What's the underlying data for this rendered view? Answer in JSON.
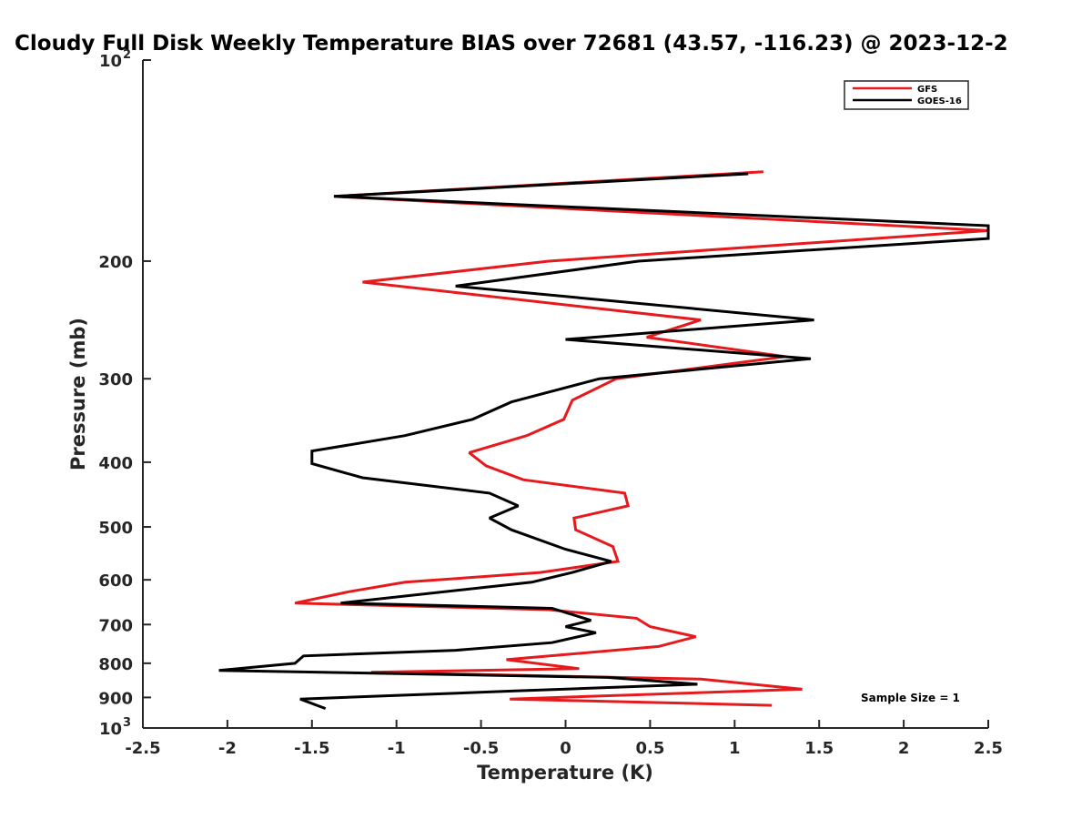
{
  "chart_data": {
    "type": "line",
    "title": "Cloudy Full Disk Weekly Temperature BIAS over 72681 (43.57, -116.23) @ 2023-12-2",
    "xlabel": "Temperature (K)",
    "ylabel": "Pressure (mb)",
    "xlim": [
      -2.5,
      2.5
    ],
    "ylim": [
      1000,
      100
    ],
    "y_scale": "log",
    "y_direction": "reverse",
    "grid": false,
    "legend_position": "top-right",
    "x_ticks": [
      {
        "value": -2.5,
        "label": "-2.5"
      },
      {
        "value": -2,
        "label": "-2"
      },
      {
        "value": -1.5,
        "label": "-1.5"
      },
      {
        "value": -1,
        "label": "-1"
      },
      {
        "value": -0.5,
        "label": "-0.5"
      },
      {
        "value": 0,
        "label": "0"
      },
      {
        "value": 0.5,
        "label": "0.5"
      },
      {
        "value": 1,
        "label": "1"
      },
      {
        "value": 1.5,
        "label": "1.5"
      },
      {
        "value": 2,
        "label": "2"
      },
      {
        "value": 2.5,
        "label": "2.5"
      }
    ],
    "y_ticks": [
      {
        "value": 100,
        "base": "10",
        "exp": "2"
      },
      {
        "value": 200,
        "base": "200",
        "exp": ""
      },
      {
        "value": 300,
        "base": "300",
        "exp": ""
      },
      {
        "value": 400,
        "base": "400",
        "exp": ""
      },
      {
        "value": 500,
        "base": "500",
        "exp": ""
      },
      {
        "value": 600,
        "base": "600",
        "exp": ""
      },
      {
        "value": 700,
        "base": "700",
        "exp": ""
      },
      {
        "value": 800,
        "base": "800",
        "exp": ""
      },
      {
        "value": 900,
        "base": "900",
        "exp": ""
      },
      {
        "value": 1000,
        "base": "10",
        "exp": "3"
      }
    ],
    "series": [
      {
        "name": "GFS",
        "color": "#e6191c",
        "points": [
          {
            "x": 1.17,
            "p": 147
          },
          {
            "x": -1.37,
            "p": 160
          },
          {
            "x": 2.5,
            "p": 180
          },
          {
            "x": -0.1,
            "p": 200
          },
          {
            "x": -1.2,
            "p": 215
          },
          {
            "x": 0.8,
            "p": 245
          },
          {
            "x": 0.48,
            "p": 260
          },
          {
            "x": 1.3,
            "p": 278
          },
          {
            "x": 0.3,
            "p": 300
          },
          {
            "x": 0.04,
            "p": 323
          },
          {
            "x": -0.01,
            "p": 345
          },
          {
            "x": -0.23,
            "p": 365
          },
          {
            "x": -0.57,
            "p": 387
          },
          {
            "x": -0.47,
            "p": 405
          },
          {
            "x": -0.25,
            "p": 425
          },
          {
            "x": 0.35,
            "p": 445
          },
          {
            "x": 0.37,
            "p": 465
          },
          {
            "x": 0.05,
            "p": 485
          },
          {
            "x": 0.06,
            "p": 505
          },
          {
            "x": 0.28,
            "p": 535
          },
          {
            "x": 0.31,
            "p": 563
          },
          {
            "x": -0.15,
            "p": 585
          },
          {
            "x": -0.95,
            "p": 605
          },
          {
            "x": -1.28,
            "p": 625
          },
          {
            "x": -1.6,
            "p": 650
          },
          {
            "x": -0.1,
            "p": 665
          },
          {
            "x": 0.42,
            "p": 685
          },
          {
            "x": 0.5,
            "p": 705
          },
          {
            "x": 0.77,
            "p": 730
          },
          {
            "x": 0.55,
            "p": 755
          },
          {
            "x": -0.35,
            "p": 790
          },
          {
            "x": 0.08,
            "p": 815
          },
          {
            "x": -1.15,
            "p": 825
          },
          {
            "x": 0.8,
            "p": 845
          },
          {
            "x": 1.4,
            "p": 875
          },
          {
            "x": -0.33,
            "p": 905
          },
          {
            "x": 1.22,
            "p": 925
          }
        ]
      },
      {
        "name": "GOES-16",
        "color": "#000000",
        "points": [
          {
            "x": 1.08,
            "p": 148
          },
          {
            "x": -1.37,
            "p": 160
          },
          {
            "x": 2.5,
            "p": 177
          },
          {
            "x": 2.5,
            "p": 185
          },
          {
            "x": 0.43,
            "p": 200
          },
          {
            "x": -0.65,
            "p": 218
          },
          {
            "x": 1.47,
            "p": 245
          },
          {
            "x": 0.0,
            "p": 262
          },
          {
            "x": 1.45,
            "p": 280
          },
          {
            "x": 0.2,
            "p": 300
          },
          {
            "x": -0.32,
            "p": 325
          },
          {
            "x": -0.55,
            "p": 345
          },
          {
            "x": -0.95,
            "p": 365
          },
          {
            "x": -1.5,
            "p": 385
          },
          {
            "x": -1.5,
            "p": 402
          },
          {
            "x": -1.2,
            "p": 422
          },
          {
            "x": -0.45,
            "p": 445
          },
          {
            "x": -0.28,
            "p": 465
          },
          {
            "x": -0.45,
            "p": 485
          },
          {
            "x": -0.32,
            "p": 505
          },
          {
            "x": 0.0,
            "p": 540
          },
          {
            "x": 0.27,
            "p": 563
          },
          {
            "x": 0.04,
            "p": 585
          },
          {
            "x": -0.2,
            "p": 605
          },
          {
            "x": -1.33,
            "p": 650
          },
          {
            "x": -0.08,
            "p": 662
          },
          {
            "x": 0.15,
            "p": 690
          },
          {
            "x": 0.0,
            "p": 705
          },
          {
            "x": 0.18,
            "p": 720
          },
          {
            "x": -0.08,
            "p": 745
          },
          {
            "x": -0.65,
            "p": 765
          },
          {
            "x": -1.55,
            "p": 780
          },
          {
            "x": -1.6,
            "p": 800
          },
          {
            "x": -2.05,
            "p": 820
          },
          {
            "x": 0.25,
            "p": 840
          },
          {
            "x": 0.78,
            "p": 860
          },
          {
            "x": -0.3,
            "p": 880
          },
          {
            "x": -1.57,
            "p": 905
          },
          {
            "x": -1.42,
            "p": 935
          }
        ]
      }
    ],
    "annotation": "Sample Size = 1"
  }
}
